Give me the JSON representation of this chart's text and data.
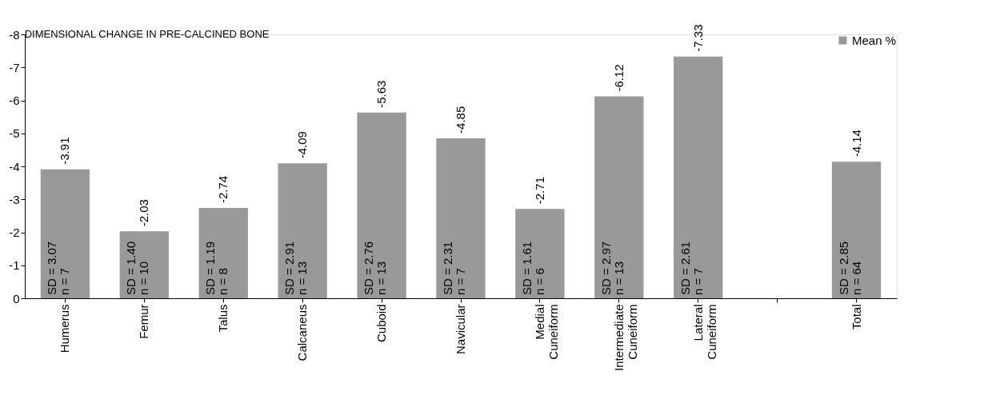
{
  "chart_data": {
    "type": "bar",
    "title": "DIMENSIONAL CHANGE IN PRE-CALCINED BONE",
    "categories": [
      "Humerus",
      "Femur",
      "Talus",
      "Calcaneus",
      "Cuboid",
      "Navicular",
      "Medial Cuneiform",
      "Intermediate Cuneiform",
      "Lateral Cuneiform",
      null,
      "Total"
    ],
    "series": [
      {
        "name": "Mean %",
        "color": "#999999",
        "values": [
          -3.91,
          -2.03,
          -2.74,
          -4.09,
          -5.63,
          -4.85,
          -2.71,
          -6.12,
          -7.33,
          null,
          -4.14
        ]
      }
    ],
    "data_labels": true,
    "ylim": [
      0,
      -8
    ],
    "yticks": [
      0,
      -1,
      -2,
      -3,
      -4,
      -5,
      -6,
      -7,
      -8
    ],
    "grid": false,
    "legend": "top right",
    "annotations": [
      "SD = 3.07\nn = 7",
      "SD = 1.40\nn = 10",
      "SD = 1.19\nn = 8",
      "SD = 2.91\nn = 13",
      "SD = 2.76\nn = 13",
      "SD = 2.31\nn = 7",
      "SD = 1.61\nn = 6",
      "SD = 2.97\nn = 13",
      "SD = 2.61\nn = 7",
      "SD = 2.85\nn = 64"
    ]
  }
}
